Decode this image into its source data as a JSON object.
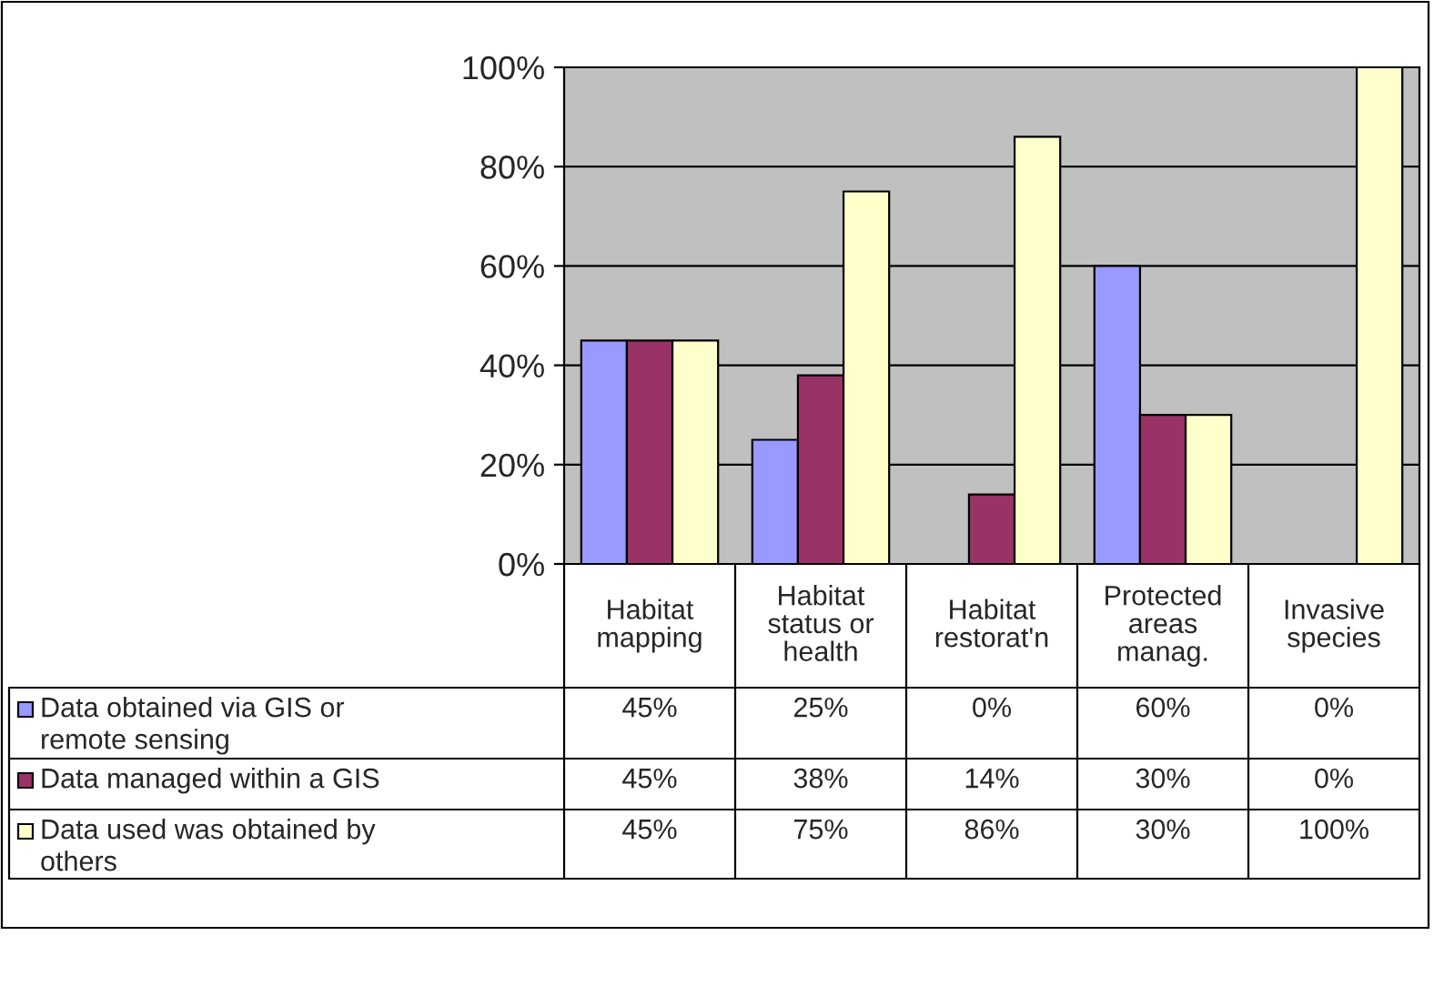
{
  "chart_data": {
    "type": "bar",
    "categories": [
      "Habitat mapping",
      "Habitat status or health",
      "Habitat restorat'n",
      "Protected areas manag.",
      "Invasive species"
    ],
    "series": [
      {
        "name": "Data obtained via GIS or remote sensing",
        "color": "#9999ff",
        "values": [
          45,
          25,
          0,
          60,
          0
        ],
        "value_labels": [
          "45%",
          "25%",
          "0%",
          "60%",
          "0%"
        ]
      },
      {
        "name": "Data managed within a GIS",
        "color": "#993366",
        "values": [
          45,
          38,
          14,
          30,
          0
        ],
        "value_labels": [
          "45%",
          "38%",
          "14%",
          "30%",
          "0%"
        ]
      },
      {
        "name": "Data used was obtained by others",
        "color": "#ffffcc",
        "values": [
          45,
          75,
          86,
          30,
          100
        ],
        "value_labels": [
          "45%",
          "75%",
          "86%",
          "30%",
          "100%"
        ]
      }
    ],
    "ylim": [
      0,
      100
    ],
    "yticks": [
      {
        "value": 0,
        "label": "0%"
      },
      {
        "value": 20,
        "label": "20%"
      },
      {
        "value": 40,
        "label": "40%"
      },
      {
        "value": 60,
        "label": "60%"
      },
      {
        "value": 80,
        "label": "80%"
      },
      {
        "value": 100,
        "label": "100%"
      }
    ],
    "grid": "y",
    "legend": "bottom"
  }
}
